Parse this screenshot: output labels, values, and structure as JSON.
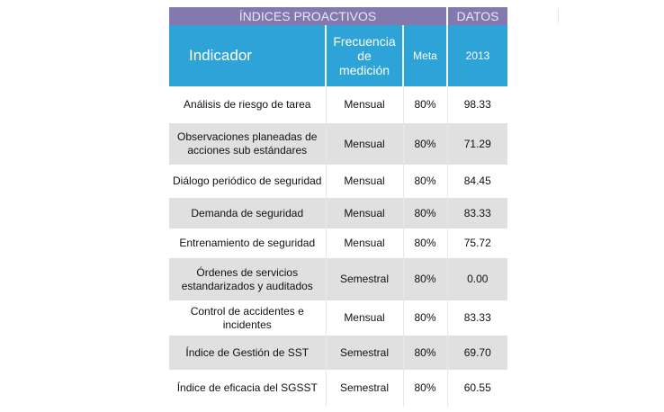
{
  "header": {
    "group_title": "ÍNDICES PROACTIVOS",
    "data_title": "DATOS",
    "col_indicator": "Indicador",
    "col_frequency": "Frecuencia de medición",
    "col_goal": "Meta",
    "col_year": "2013"
  },
  "rows": [
    {
      "indicator": "Análisis de riesgo de tarea",
      "frequency": "Mensual",
      "goal": "80%",
      "value": "98.33"
    },
    {
      "indicator": "Observaciones planeadas de acciones sub estándares",
      "frequency": "Mensual",
      "goal": "80%",
      "value": "71.29"
    },
    {
      "indicator": "Diálogo periódico de seguridad",
      "frequency": "Mensual",
      "goal": "80%",
      "value": "84.45"
    },
    {
      "indicator": "Demanda de seguridad",
      "frequency": "Mensual",
      "goal": "80%",
      "value": "83.33"
    },
    {
      "indicator": "Entrenamiento de seguridad",
      "frequency": "Mensual",
      "goal": "80%",
      "value": "75.72"
    },
    {
      "indicator": "Órdenes de servicios estandarizados y auditados",
      "frequency": "Semestral",
      "goal": "80%",
      "value": "0.00"
    },
    {
      "indicator": "Control de accidentes e incidentes",
      "frequency": "Mensual",
      "goal": "80%",
      "value": "83.33"
    },
    {
      "indicator": "Índice de Gestión de SST",
      "frequency": "Semestral",
      "goal": "80%",
      "value": "69.70"
    },
    {
      "indicator": "Índice de eficacia del SGSST",
      "frequency": "Semestral",
      "goal": "80%",
      "value": "60.55"
    }
  ]
}
